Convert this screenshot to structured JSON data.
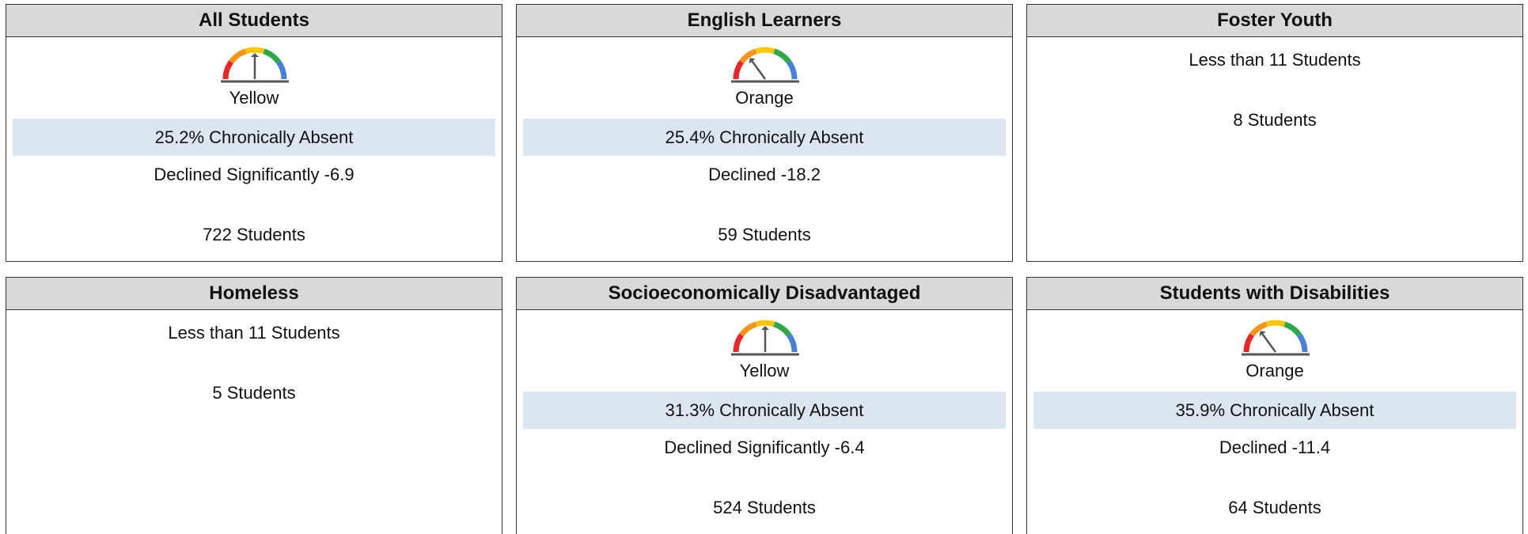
{
  "cards": [
    {
      "title": "All Students",
      "status": "Yellow",
      "gauge_color": "#f5c518",
      "rate": "25.2% Chronically Absent",
      "change": "Declined Significantly -6.9",
      "students": "722 Students"
    },
    {
      "title": "English Learners",
      "status": "Orange",
      "gauge_color": "#f7941d",
      "rate": "25.4% Chronically Absent",
      "change": "Declined -18.2",
      "students": "59 Students"
    },
    {
      "title": "Foster Youth",
      "note": "Less than 11 Students",
      "students": "8 Students"
    },
    {
      "title": "Homeless",
      "note": "Less than 11 Students",
      "students": "5 Students"
    },
    {
      "title": "Socioeconomically Disadvantaged",
      "status": "Yellow",
      "gauge_color": "#f5c518",
      "rate": "31.3% Chronically Absent",
      "change": "Declined Significantly -6.4",
      "students": "524 Students"
    },
    {
      "title": "Students with Disabilities",
      "status": "Orange",
      "gauge_color": "#f7941d",
      "rate": "35.9% Chronically Absent",
      "change": "Declined -11.4",
      "students": "64 Students"
    }
  ]
}
